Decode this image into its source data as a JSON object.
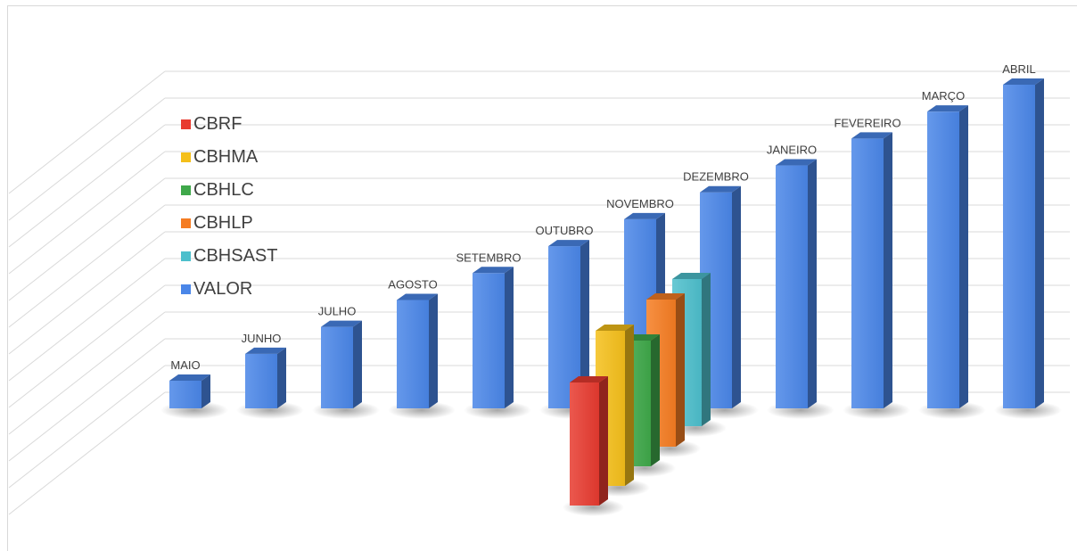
{
  "chart_data": {
    "type": "bar",
    "title": "",
    "xlabel": "",
    "ylabel": "",
    "categories": [
      "MAIO",
      "JUNHO",
      "JULHO",
      "AGOSTO",
      "SETEMBRO",
      "OUTUBRO",
      "NOVEMBRO",
      "DEZEMBRO",
      "JANEIRO",
      "FEVEREIRO",
      "MARÇO",
      "ABRIL"
    ],
    "series": [
      {
        "name": "VALOR",
        "color": "#4a86e8",
        "values": [
          1,
          2,
          3,
          4,
          5,
          6,
          7,
          8,
          9,
          10,
          11,
          12
        ]
      },
      {
        "name": "CBHSAST",
        "color": "#4dbfcc",
        "value": 5.5
      },
      {
        "name": "CBHLP",
        "color": "#f57c22",
        "value": 5.5
      },
      {
        "name": "CBHLC",
        "color": "#3fa84a",
        "value": 4.7
      },
      {
        "name": "CBHMA",
        "color": "#f4bf1a",
        "value": 5.8
      },
      {
        "name": "CBRF",
        "color": "#e83a2f",
        "value": 4.6
      }
    ],
    "legend": [
      "CBRF",
      "CBHMA",
      "CBHLC",
      "CBHLP",
      "CBHSAST",
      "VALOR"
    ],
    "legend_position": "left",
    "grid": true,
    "style": "3d-column"
  }
}
